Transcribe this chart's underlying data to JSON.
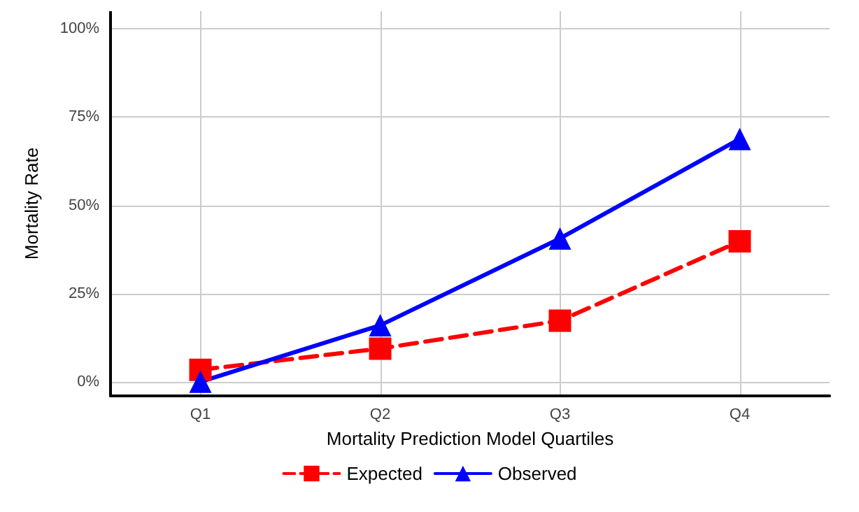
{
  "chart_data": {
    "type": "line",
    "xlabel": "Mortality Prediction Model Quartiles",
    "ylabel": "Mortality Rate",
    "categories": [
      "Q1",
      "Q2",
      "Q3",
      "Q4"
    ],
    "series": [
      {
        "name": "Expected",
        "color": "#ff0000",
        "values": [
          3.4,
          9.4,
          17.3,
          39.8
        ],
        "marker": "square",
        "line_style": "dashed"
      },
      {
        "name": "Observed",
        "color": "#0000ff",
        "values": [
          0,
          16,
          40.6,
          68.8
        ],
        "marker": "triangle",
        "line_style": "solid"
      }
    ],
    "ylim": [
      -4,
      105
    ],
    "yticks": [
      {
        "value": 0,
        "label": "0%"
      },
      {
        "value": 25,
        "label": "25%"
      },
      {
        "value": 50,
        "label": "50%"
      },
      {
        "value": 75,
        "label": "75%"
      },
      {
        "value": 100,
        "label": "100%"
      }
    ],
    "grid": true,
    "legend": "bottom"
  }
}
